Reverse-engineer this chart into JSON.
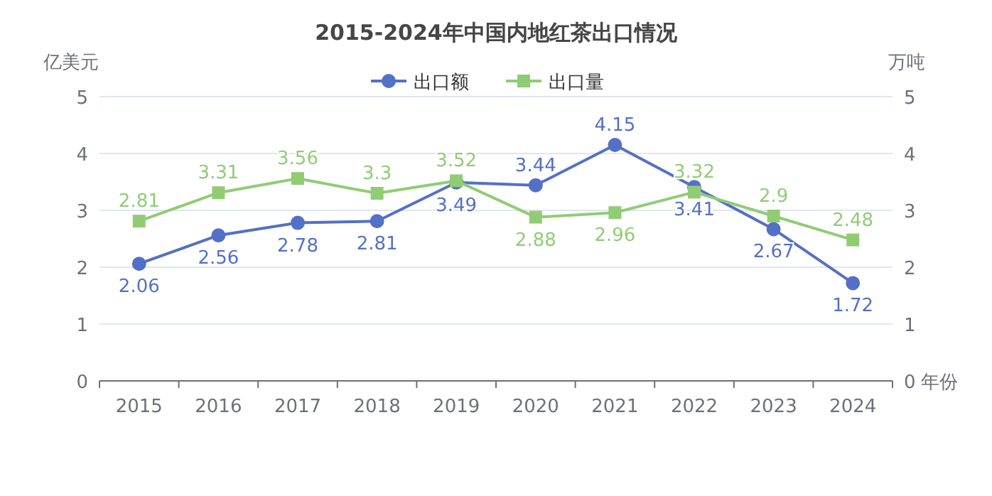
{
  "chart_data": {
    "type": "line",
    "title": "2015-2024年中国内地红茶出口情况",
    "xlabel": "年份",
    "ylabel": "亿美元",
    "y2label": "万吨",
    "categories": [
      "2015",
      "2016",
      "2017",
      "2018",
      "2019",
      "2020",
      "2021",
      "2022",
      "2023",
      "2024"
    ],
    "series": [
      {
        "name": "出口额",
        "color": "#5470c6",
        "marker": "circle",
        "values": [
          2.06,
          2.56,
          2.78,
          2.81,
          3.49,
          3.44,
          4.15,
          3.41,
          2.67,
          1.72
        ]
      },
      {
        "name": "出口量",
        "color": "#91cc75",
        "marker": "square",
        "axis": "y2",
        "values": [
          2.81,
          3.31,
          3.56,
          3.3,
          3.52,
          2.88,
          2.96,
          3.32,
          2.9,
          2.48
        ]
      }
    ],
    "ylim": [
      0,
      5
    ],
    "yticks": [
      0,
      1,
      2,
      3,
      4,
      5
    ],
    "y2lim": [
      0,
      5
    ],
    "y2ticks": [
      0,
      1,
      2,
      3,
      4,
      5
    ],
    "grid": "y",
    "legend": "top",
    "data_labels": true
  }
}
